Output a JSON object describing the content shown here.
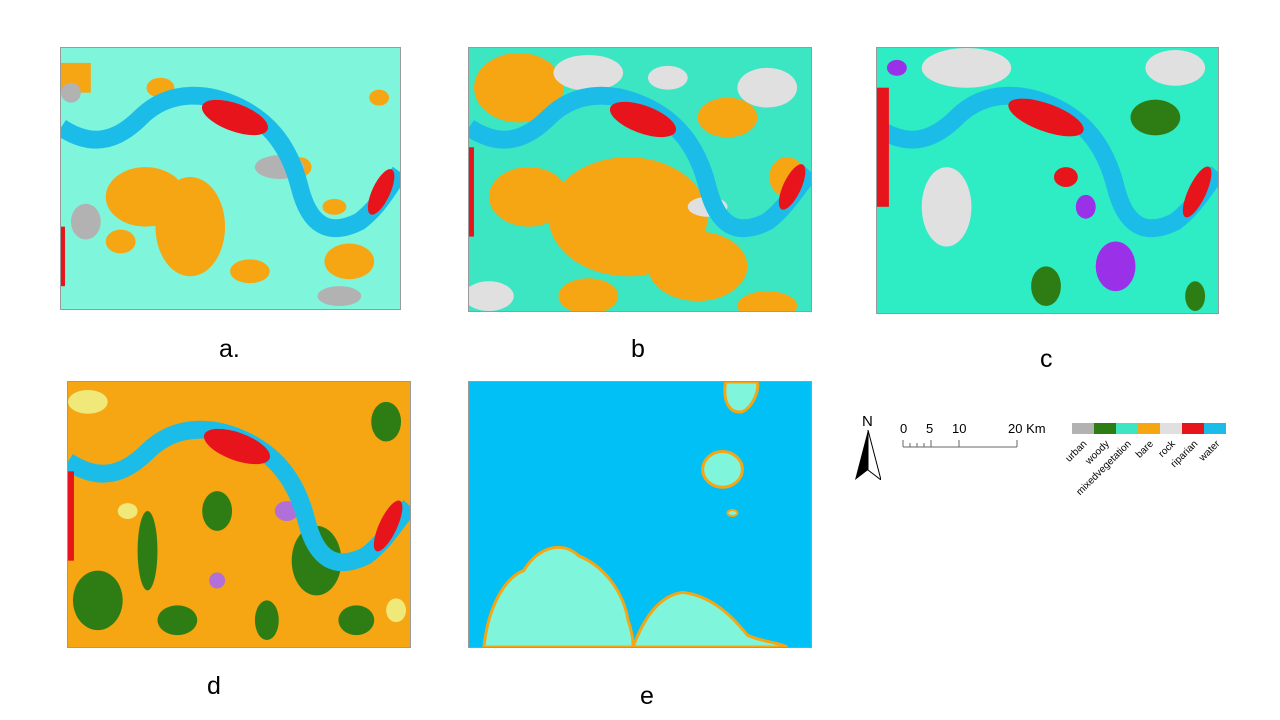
{
  "panels": [
    {
      "id": "a",
      "caption": "a."
    },
    {
      "id": "b",
      "caption": "b"
    },
    {
      "id": "c",
      "caption": "c"
    },
    {
      "id": "d",
      "caption": "d"
    },
    {
      "id": "e",
      "caption": "e"
    }
  ],
  "legend": {
    "north_label": "N",
    "scale": {
      "ticks": [
        "0",
        "5",
        "10",
        "20 Km"
      ]
    },
    "classes": [
      {
        "name": "urban",
        "color": "#b2b2b2"
      },
      {
        "name": "woody",
        "color": "#2e7d14"
      },
      {
        "name": "mixedvegetation",
        "color": "#3de6c3"
      },
      {
        "name": "bare",
        "color": "#f5a612"
      },
      {
        "name": "rock",
        "color": "#e0e0e0"
      },
      {
        "name": "riparian",
        "color": "#e8141c"
      },
      {
        "name": "water",
        "color": "#1bbde8"
      }
    ]
  }
}
